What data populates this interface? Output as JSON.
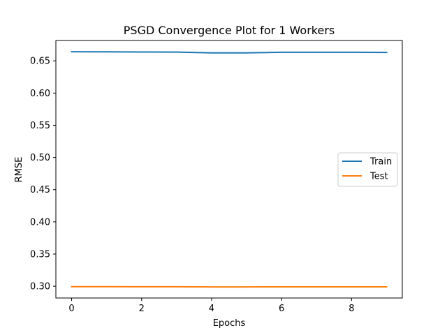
{
  "chart_data": {
    "type": "line",
    "title": "PSGD Convergence Plot for 1 Workers",
    "xlabel": "Epochs",
    "ylabel": "RMSE",
    "xlim": [
      -0.45,
      9.45
    ],
    "ylim": [
      0.2817,
      0.6817
    ],
    "x_ticks": [
      0,
      2,
      4,
      6,
      8
    ],
    "y_ticks": [
      0.3,
      0.35,
      0.4,
      0.45,
      0.5,
      0.55,
      0.6,
      0.65
    ],
    "grid": false,
    "legend_position": "center-right",
    "x": [
      0,
      1,
      2,
      3,
      4,
      5,
      6,
      7,
      8,
      9
    ],
    "series": [
      {
        "name": "Train",
        "color": "#1f77b4",
        "values": [
          0.6642,
          0.6641,
          0.6638,
          0.6637,
          0.6625,
          0.6625,
          0.6634,
          0.6634,
          0.6634,
          0.6632
        ]
      },
      {
        "name": "Test",
        "color": "#ff7f0e",
        "values": [
          0.2993,
          0.2993,
          0.2992,
          0.2992,
          0.2989,
          0.2989,
          0.2991,
          0.2991,
          0.2991,
          0.299
        ]
      }
    ]
  }
}
